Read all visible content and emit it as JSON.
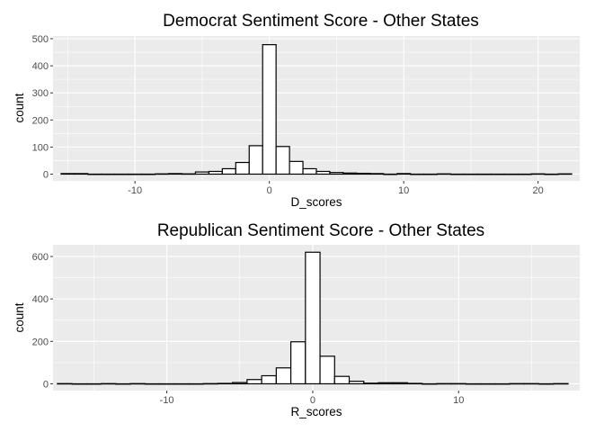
{
  "chart_data": [
    {
      "type": "bar",
      "title": "Democrat Sentiment Score - Other States",
      "xlabel": "D_scores",
      "ylabel": "count",
      "xlim": [
        -16.1,
        23.1
      ],
      "ylim": [
        -25,
        510
      ],
      "x_ticks": [
        -10,
        0,
        10,
        20
      ],
      "x_tick_labels": [
        "-10",
        "0",
        "10",
        "20"
      ],
      "y_ticks": [
        0,
        100,
        200,
        300,
        400,
        500
      ],
      "y_tick_labels": [
        "0",
        "100",
        "200",
        "300",
        "400",
        "500"
      ],
      "bin_width": 1.0,
      "bin_centers": [
        -15,
        -14,
        -13,
        -12,
        -11,
        -10,
        -9,
        -8,
        -7,
        -6,
        -5,
        -4,
        -3,
        -2,
        -1,
        0,
        1,
        2,
        3,
        4,
        5,
        6,
        7,
        8,
        9,
        10,
        11,
        12,
        13,
        14,
        15,
        16,
        17,
        18,
        19,
        20,
        21,
        22
      ],
      "values": [
        2,
        2,
        0,
        0,
        0,
        0,
        0,
        1,
        2,
        1,
        8,
        10,
        20,
        43,
        105,
        478,
        102,
        47,
        20,
        10,
        6,
        4,
        3,
        2,
        0,
        2,
        0,
        0,
        1,
        0,
        0,
        0,
        0,
        0,
        0,
        1,
        0,
        1
      ],
      "grid": true,
      "legend": "none"
    },
    {
      "type": "bar",
      "title": "Republican Sentiment Score - Other States",
      "xlabel": "R_scores",
      "ylabel": "count",
      "xlim": [
        -17.8,
        18.3
      ],
      "ylim": [
        -32,
        655
      ],
      "x_ticks": [
        -10,
        0,
        10
      ],
      "x_tick_labels": [
        "-10",
        "0",
        "10"
      ],
      "y_ticks": [
        0,
        200,
        400,
        600
      ],
      "y_tick_labels": [
        "0",
        "200",
        "400",
        "600"
      ],
      "bin_width": 1.0,
      "bin_centers": [
        -17,
        -16,
        -15,
        -14,
        -13,
        -12,
        -11,
        -10,
        -9,
        -8,
        -7,
        -6,
        -5,
        -4,
        -3,
        -2,
        -1,
        0,
        1,
        2,
        3,
        4,
        5,
        6,
        7,
        8,
        9,
        10,
        11,
        12,
        13,
        14,
        15,
        16,
        17
      ],
      "values": [
        1,
        0,
        0,
        1,
        0,
        1,
        0,
        0,
        0,
        0,
        1,
        2,
        6,
        20,
        38,
        75,
        198,
        620,
        130,
        35,
        12,
        3,
        5,
        5,
        2,
        0,
        1,
        1,
        0,
        0,
        0,
        1,
        1,
        0,
        1
      ],
      "grid": true,
      "legend": "none"
    }
  ]
}
